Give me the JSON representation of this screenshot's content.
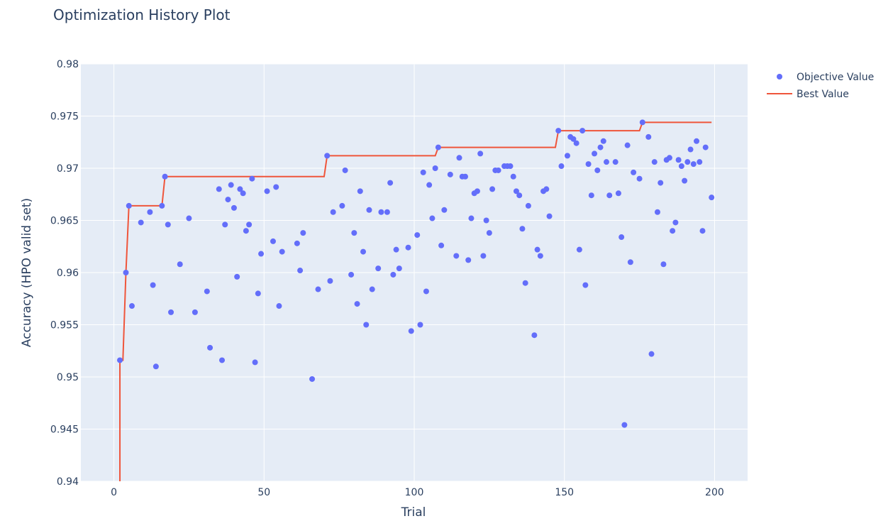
{
  "chart_data": {
    "type": "scatter",
    "title": "Optimization History Plot",
    "xlabel": "Trial",
    "ylabel": "Accuracy (HPO valid set)",
    "xlim": [
      -11,
      211
    ],
    "ylim": [
      0.94,
      0.98
    ],
    "xticks": [
      0,
      50,
      100,
      150,
      200
    ],
    "xtick_labels": [
      "0",
      "50",
      "100",
      "150",
      "200"
    ],
    "yticks": [
      0.94,
      0.945,
      0.95,
      0.955,
      0.96,
      0.965,
      0.97,
      0.975,
      0.98
    ],
    "ytick_labels": [
      "0.94",
      "0.945",
      "0.95",
      "0.955",
      "0.96",
      "0.965",
      "0.97",
      "0.975",
      "0.98"
    ],
    "grid": true,
    "legend_position": "top-right",
    "series": [
      {
        "name": "Objective Value",
        "kind": "markers",
        "color": "#636efa",
        "points": [
          [
            2,
            0.9516
          ],
          [
            4,
            0.96
          ],
          [
            5,
            0.9664
          ],
          [
            6,
            0.9568
          ],
          [
            9,
            0.9648
          ],
          [
            12,
            0.9658
          ],
          [
            13,
            0.9588
          ],
          [
            14,
            0.951
          ],
          [
            16,
            0.9664
          ],
          [
            17,
            0.9692
          ],
          [
            18,
            0.9646
          ],
          [
            19,
            0.9562
          ],
          [
            22,
            0.9608
          ],
          [
            25,
            0.9652
          ],
          [
            27,
            0.9562
          ],
          [
            31,
            0.9582
          ],
          [
            32,
            0.9528
          ],
          [
            35,
            0.968
          ],
          [
            36,
            0.9516
          ],
          [
            37,
            0.9646
          ],
          [
            38,
            0.967
          ],
          [
            39,
            0.9684
          ],
          [
            40,
            0.9662
          ],
          [
            41,
            0.9596
          ],
          [
            42,
            0.968
          ],
          [
            43,
            0.9676
          ],
          [
            44,
            0.964
          ],
          [
            45,
            0.9646
          ],
          [
            46,
            0.969
          ],
          [
            47,
            0.9514
          ],
          [
            48,
            0.958
          ],
          [
            49,
            0.9618
          ],
          [
            51,
            0.9678
          ],
          [
            53,
            0.963
          ],
          [
            54,
            0.9682
          ],
          [
            55,
            0.9568
          ],
          [
            56,
            0.962
          ],
          [
            61,
            0.9628
          ],
          [
            62,
            0.9602
          ],
          [
            63,
            0.9638
          ],
          [
            66,
            0.9498
          ],
          [
            68,
            0.9584
          ],
          [
            71,
            0.9712
          ],
          [
            72,
            0.9592
          ],
          [
            73,
            0.9658
          ],
          [
            76,
            0.9664
          ],
          [
            77,
            0.9698
          ],
          [
            79,
            0.9598
          ],
          [
            80,
            0.9638
          ],
          [
            81,
            0.957
          ],
          [
            82,
            0.9678
          ],
          [
            83,
            0.962
          ],
          [
            84,
            0.955
          ],
          [
            85,
            0.966
          ],
          [
            86,
            0.9584
          ],
          [
            88,
            0.9604
          ],
          [
            89,
            0.9658
          ],
          [
            91,
            0.9658
          ],
          [
            92,
            0.9686
          ],
          [
            93,
            0.9598
          ],
          [
            94,
            0.9622
          ],
          [
            95,
            0.9604
          ],
          [
            98,
            0.9624
          ],
          [
            99,
            0.9544
          ],
          [
            101,
            0.9636
          ],
          [
            102,
            0.955
          ],
          [
            103,
            0.9696
          ],
          [
            104,
            0.9582
          ],
          [
            105,
            0.9684
          ],
          [
            106,
            0.9652
          ],
          [
            107,
            0.97
          ],
          [
            108,
            0.972
          ],
          [
            109,
            0.9626
          ],
          [
            110,
            0.966
          ],
          [
            112,
            0.9694
          ],
          [
            114,
            0.9616
          ],
          [
            115,
            0.971
          ],
          [
            116,
            0.9692
          ],
          [
            117,
            0.9692
          ],
          [
            118,
            0.9612
          ],
          [
            119,
            0.9652
          ],
          [
            120,
            0.9676
          ],
          [
            121,
            0.9678
          ],
          [
            122,
            0.9714
          ],
          [
            123,
            0.9616
          ],
          [
            124,
            0.965
          ],
          [
            125,
            0.9638
          ],
          [
            126,
            0.968
          ],
          [
            127,
            0.9698
          ],
          [
            128,
            0.9698
          ],
          [
            130,
            0.9702
          ],
          [
            131,
            0.9702
          ],
          [
            132,
            0.9702
          ],
          [
            133,
            0.9692
          ],
          [
            134,
            0.9678
          ],
          [
            135,
            0.9674
          ],
          [
            136,
            0.9642
          ],
          [
            137,
            0.959
          ],
          [
            138,
            0.9664
          ],
          [
            140,
            0.954
          ],
          [
            141,
            0.9622
          ],
          [
            142,
            0.9616
          ],
          [
            143,
            0.9678
          ],
          [
            144,
            0.968
          ],
          [
            145,
            0.9654
          ],
          [
            148,
            0.9736
          ],
          [
            149,
            0.9702
          ],
          [
            151,
            0.9712
          ],
          [
            152,
            0.973
          ],
          [
            153,
            0.9728
          ],
          [
            154,
            0.9724
          ],
          [
            155,
            0.9622
          ],
          [
            156,
            0.9736
          ],
          [
            157,
            0.9588
          ],
          [
            158,
            0.9704
          ],
          [
            159,
            0.9674
          ],
          [
            160,
            0.9714
          ],
          [
            161,
            0.9698
          ],
          [
            162,
            0.972
          ],
          [
            163,
            0.9726
          ],
          [
            164,
            0.9706
          ],
          [
            165,
            0.9674
          ],
          [
            167,
            0.9706
          ],
          [
            168,
            0.9676
          ],
          [
            169,
            0.9634
          ],
          [
            170,
            0.9454
          ],
          [
            171,
            0.9722
          ],
          [
            172,
            0.961
          ],
          [
            173,
            0.9696
          ],
          [
            175,
            0.969
          ],
          [
            176,
            0.9744
          ],
          [
            178,
            0.973
          ],
          [
            179,
            0.9522
          ],
          [
            180,
            0.9706
          ],
          [
            181,
            0.9658
          ],
          [
            182,
            0.9686
          ],
          [
            183,
            0.9608
          ],
          [
            184,
            0.9708
          ],
          [
            185,
            0.971
          ],
          [
            186,
            0.964
          ],
          [
            187,
            0.9648
          ],
          [
            188,
            0.9708
          ],
          [
            189,
            0.9702
          ],
          [
            190,
            0.9688
          ],
          [
            191,
            0.9706
          ],
          [
            192,
            0.9718
          ],
          [
            193,
            0.9704
          ],
          [
            194,
            0.9726
          ],
          [
            195,
            0.9706
          ],
          [
            196,
            0.964
          ],
          [
            197,
            0.972
          ],
          [
            199,
            0.9672
          ]
        ]
      },
      {
        "name": "Best Value",
        "kind": "line",
        "color": "#ef553b",
        "points": [
          [
            2,
            0.94
          ],
          [
            2,
            0.9516
          ],
          [
            3,
            0.9516
          ],
          [
            4,
            0.96
          ],
          [
            5,
            0.9664
          ],
          [
            16,
            0.9664
          ],
          [
            17,
            0.9692
          ],
          [
            70,
            0.9692
          ],
          [
            71,
            0.9712
          ],
          [
            107,
            0.9712
          ],
          [
            108,
            0.972
          ],
          [
            147,
            0.972
          ],
          [
            148,
            0.9736
          ],
          [
            175,
            0.9736
          ],
          [
            176,
            0.9744
          ],
          [
            199,
            0.9744
          ]
        ]
      }
    ]
  }
}
